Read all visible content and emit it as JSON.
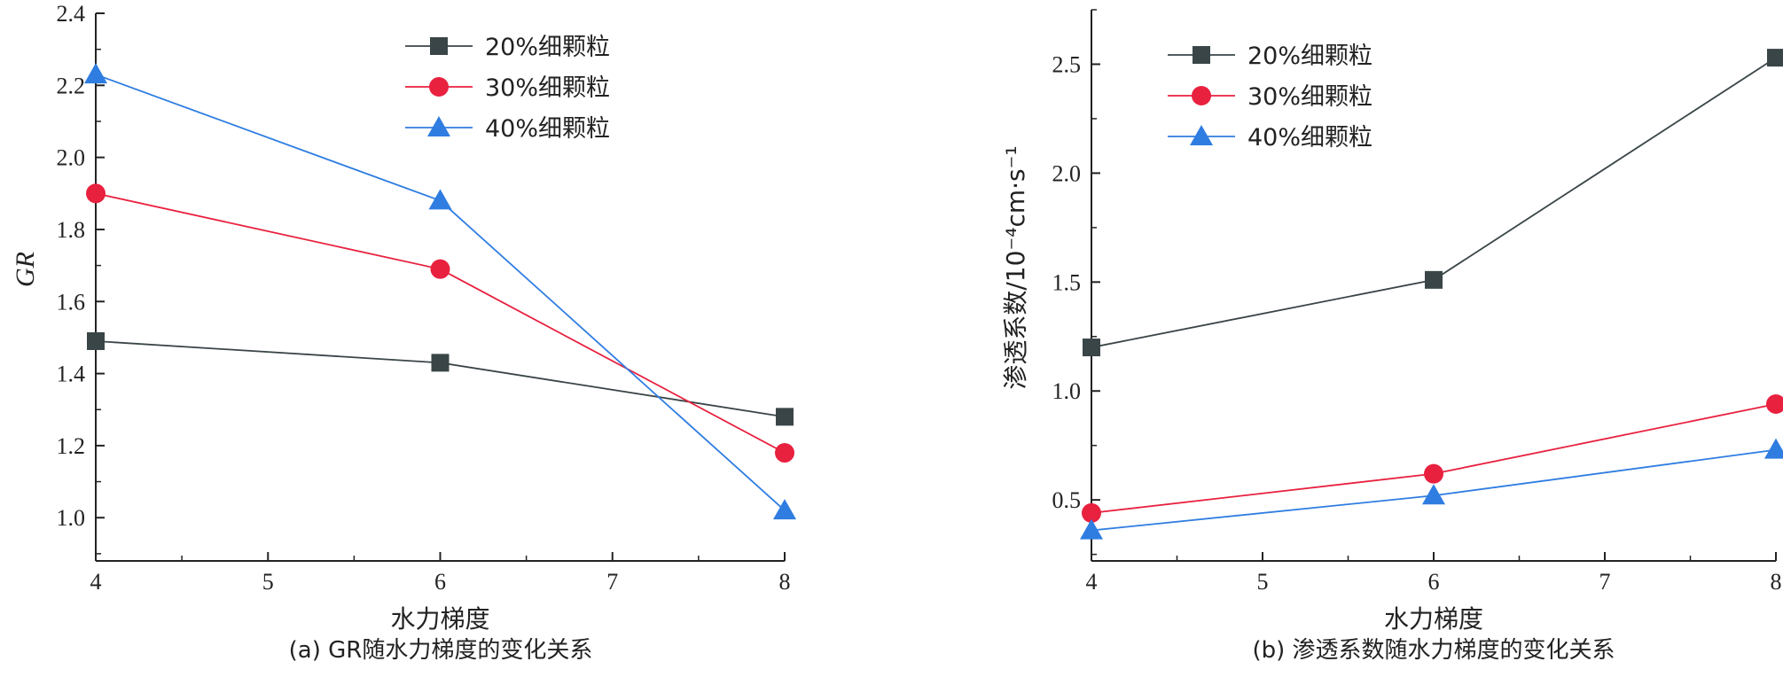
{
  "colors": {
    "s20": "#3a4548",
    "s30": "#e8213f",
    "s40": "#2f7de1",
    "axis": "#222222"
  },
  "chart_data": [
    {
      "type": "line",
      "title": "",
      "caption": "(a)  GR随水力梯度的变化关系",
      "xlabel": "水力梯度",
      "ylabel": "GR",
      "x": [
        4,
        6,
        8
      ],
      "xlim": [
        4,
        8
      ],
      "ylim": [
        0.88,
        2.4
      ],
      "xticks": [
        4,
        5,
        6,
        7,
        8
      ],
      "yticks": [
        1.0,
        1.2,
        1.4,
        1.6,
        1.8,
        2.0,
        2.2,
        2.4
      ],
      "ytick_labels": [
        "1.0",
        "1.2",
        "1.4",
        "1.6",
        "1.8",
        "2.0",
        "2.2",
        "2.4"
      ],
      "legend_position": "top-right",
      "series": [
        {
          "name": "20%细颗粒",
          "marker": "square",
          "values": [
            1.49,
            1.43,
            1.28
          ]
        },
        {
          "name": "30%细颗粒",
          "marker": "circle",
          "values": [
            1.9,
            1.69,
            1.18
          ]
        },
        {
          "name": "40%细颗粒",
          "marker": "triangle",
          "values": [
            2.23,
            1.88,
            1.02
          ]
        }
      ]
    },
    {
      "type": "line",
      "title": "",
      "caption": "(b)  渗透系数随水力梯度的变化关系",
      "xlabel": "水力梯度",
      "ylabel": "渗透系数/10⁻⁴cm·s⁻¹",
      "x": [
        4,
        6,
        8
      ],
      "xlim": [
        4,
        8
      ],
      "ylim": [
        0.22,
        2.75
      ],
      "xticks": [
        4,
        5,
        6,
        7,
        8
      ],
      "yticks": [
        0.5,
        1.0,
        1.5,
        2.0,
        2.5
      ],
      "ytick_labels": [
        "0.5",
        "1.0",
        "1.5",
        "2.0",
        "2.5"
      ],
      "legend_position": "top-left",
      "series": [
        {
          "name": "20%细颗粒",
          "marker": "square",
          "values": [
            1.2,
            1.51,
            2.53
          ]
        },
        {
          "name": "30%细颗粒",
          "marker": "circle",
          "values": [
            0.44,
            0.62,
            0.94
          ]
        },
        {
          "name": "40%细颗粒",
          "marker": "triangle",
          "values": [
            0.36,
            0.52,
            0.73
          ]
        }
      ]
    }
  ]
}
